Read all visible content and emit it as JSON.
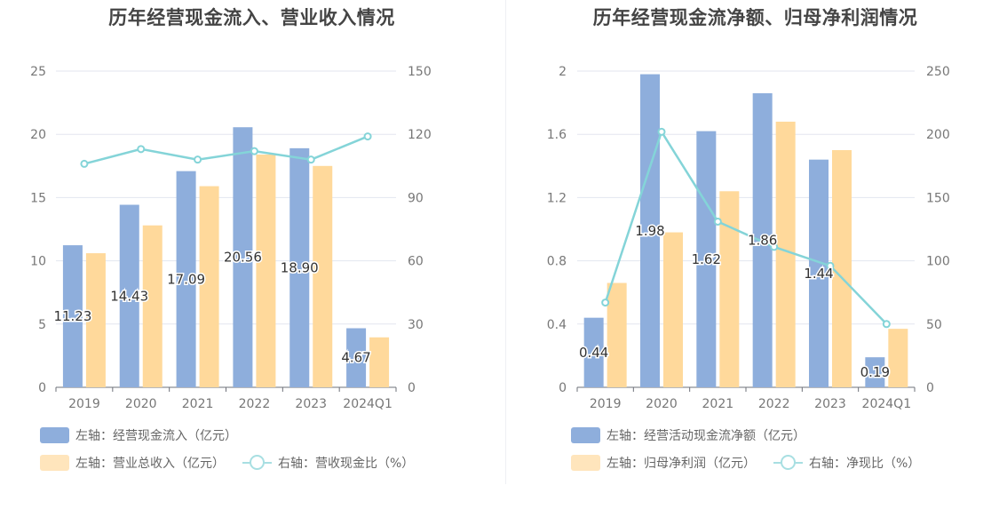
{
  "chart_data": [
    {
      "type": "bar",
      "title": "历年经营现金流入、营业收入情况",
      "categories": [
        "2019",
        "2020",
        "2021",
        "2022",
        "2023",
        "2024Q1"
      ],
      "left_axis": {
        "ticks": [
          "0",
          "5",
          "10",
          "15",
          "20",
          "25"
        ],
        "ylim": [
          0,
          25
        ]
      },
      "right_axis": {
        "ticks": [
          "0",
          "30",
          "60",
          "90",
          "120",
          "150"
        ],
        "ylim": [
          0,
          150
        ]
      },
      "series": [
        {
          "name": "左轴：经营现金流入（亿元）",
          "type": "bar",
          "axis": "left",
          "color": "#8eaedc",
          "values": [
            11.23,
            14.43,
            17.09,
            20.56,
            18.9,
            4.67
          ],
          "labels": [
            "11.23",
            "14.43",
            "17.09",
            "20.56",
            "18.90",
            "4.67"
          ]
        },
        {
          "name": "左轴：营业总收入（亿元）",
          "type": "bar",
          "axis": "left",
          "color": "#ffd99b",
          "values": [
            10.6,
            12.8,
            15.9,
            18.4,
            17.5,
            3.95
          ]
        },
        {
          "name": "右轴：营收现金比（%）",
          "type": "line",
          "axis": "right",
          "color": "#84d4d8",
          "values": [
            106,
            113,
            108,
            112,
            108,
            119
          ]
        }
      ],
      "grid": true
    },
    {
      "type": "bar",
      "title": "历年经营现金流净额、归母净利润情况",
      "categories": [
        "2019",
        "2020",
        "2021",
        "2022",
        "2023",
        "2024Q1"
      ],
      "left_axis": {
        "ticks": [
          "0",
          "0.4",
          "0.8",
          "1.2",
          "1.6",
          "2"
        ],
        "ylim": [
          0,
          2
        ]
      },
      "right_axis": {
        "ticks": [
          "0",
          "50",
          "100",
          "150",
          "200",
          "250"
        ],
        "ylim": [
          0,
          250
        ]
      },
      "series": [
        {
          "name": "左轴：经营活动现金流净额（亿元）",
          "type": "bar",
          "axis": "left",
          "color": "#8eaedc",
          "values": [
            0.44,
            1.98,
            1.62,
            1.86,
            1.44,
            0.19
          ],
          "labels": [
            "0.44",
            "1.98",
            "1.62",
            "1.86",
            "1.44",
            "0.19"
          ]
        },
        {
          "name": "左轴：归母净利润（亿元）",
          "type": "bar",
          "axis": "left",
          "color": "#ffd99b",
          "values": [
            0.66,
            0.98,
            1.24,
            1.68,
            1.5,
            0.37
          ]
        },
        {
          "name": "右轴：净现比（%）",
          "type": "line",
          "axis": "right",
          "color": "#84d4d8",
          "values": [
            67,
            202,
            131,
            111,
            96,
            50
          ]
        }
      ],
      "grid": true
    }
  ]
}
